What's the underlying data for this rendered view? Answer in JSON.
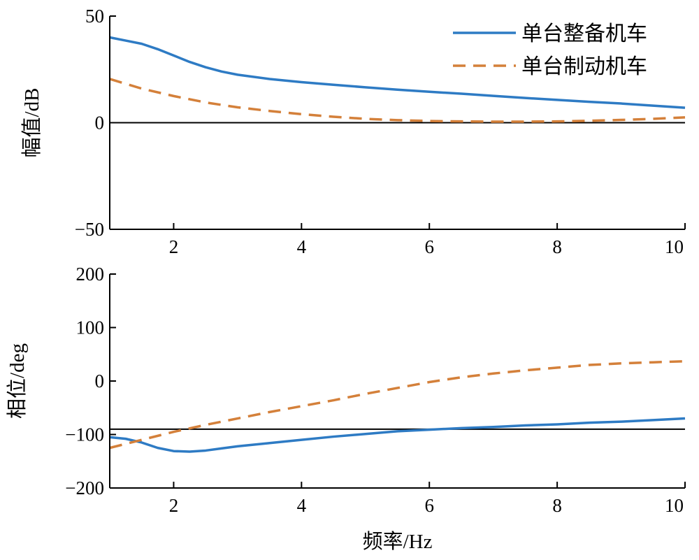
{
  "chart_data": [
    {
      "type": "line",
      "title": "",
      "xlabel": "",
      "ylabel": "幅值/dB",
      "xlim": [
        1,
        10
      ],
      "ylim": [
        -50,
        50
      ],
      "xticks": [
        2,
        4,
        6,
        8,
        10
      ],
      "xtick_labels": [
        "2",
        "4",
        "6",
        "8",
        "10"
      ],
      "yticks": [
        50,
        0,
        -50
      ],
      "ytick_labels": [
        "50",
        "0",
        "−50"
      ],
      "reference_line": 0,
      "legend": {
        "position": "top-right"
      },
      "series": [
        {
          "name": "单台整备机车",
          "color": "#2e7bc4",
          "style": "solid",
          "x": [
            1.0,
            1.25,
            1.5,
            1.75,
            2.0,
            2.25,
            2.5,
            2.75,
            3.0,
            3.5,
            4.0,
            4.5,
            5.0,
            5.5,
            6.0,
            6.5,
            7.0,
            7.5,
            8.0,
            8.5,
            9.0,
            9.5,
            10.0
          ],
          "y": [
            40,
            38.5,
            37,
            34.5,
            31.5,
            28.5,
            26,
            24,
            22.5,
            20.5,
            19,
            17.8,
            16.6,
            15.5,
            14.5,
            13.6,
            12.6,
            11.6,
            10.7,
            9.8,
            9,
            8,
            7
          ]
        },
        {
          "name": "单台制动机车",
          "color": "#d4803a",
          "style": "dashed",
          "x": [
            1.0,
            1.5,
            2.0,
            2.5,
            3.0,
            3.5,
            4.0,
            4.5,
            5.0,
            5.5,
            6.0,
            6.5,
            7.0,
            7.5,
            8.0,
            8.5,
            9.0,
            9.5,
            10.0
          ],
          "y": [
            20.5,
            16,
            12.5,
            9.5,
            7.2,
            5.5,
            4,
            2.8,
            1.8,
            1.2,
            0.8,
            0.6,
            0.5,
            0.5,
            0.6,
            0.9,
            1.3,
            1.8,
            2.5
          ]
        }
      ]
    },
    {
      "type": "line",
      "title": "",
      "xlabel": "频率/Hz",
      "ylabel": "相位/deg",
      "xlim": [
        1,
        10
      ],
      "ylim": [
        -200,
        200
      ],
      "xticks": [
        2,
        4,
        6,
        8,
        10
      ],
      "xtick_labels": [
        "2",
        "4",
        "6",
        "8",
        "10"
      ],
      "yticks": [
        200,
        100,
        0,
        -100,
        -200
      ],
      "ytick_labels": [
        "200",
        "100",
        "0",
        "−100",
        "−200"
      ],
      "reference_line": -90,
      "series": [
        {
          "name": "单台整备机车",
          "color": "#2e7bc4",
          "style": "solid",
          "x": [
            1.0,
            1.25,
            1.5,
            1.75,
            2.0,
            2.25,
            2.5,
            2.75,
            3.0,
            3.5,
            4.0,
            4.5,
            5.0,
            5.5,
            6.0,
            6.5,
            7.0,
            7.5,
            8.0,
            8.5,
            9.0,
            9.5,
            10.0
          ],
          "y": [
            -105,
            -108,
            -115,
            -125,
            -131,
            -132,
            -130,
            -126,
            -122,
            -116,
            -110,
            -104,
            -99,
            -94,
            -91,
            -88,
            -86,
            -83,
            -81,
            -78,
            -76,
            -73,
            -70
          ]
        },
        {
          "name": "单台制动机车",
          "color": "#d4803a",
          "style": "dashed",
          "x": [
            1.0,
            1.5,
            2.0,
            2.5,
            3.0,
            3.5,
            4.0,
            4.5,
            5.0,
            5.5,
            6.0,
            6.5,
            7.0,
            7.5,
            8.0,
            8.5,
            9.0,
            9.5,
            10.0
          ],
          "y": [
            -125,
            -110,
            -95,
            -82,
            -70,
            -58,
            -47,
            -36,
            -24,
            -13,
            -2,
            7,
            14,
            20,
            25,
            30,
            33,
            35,
            37
          ]
        }
      ]
    }
  ]
}
